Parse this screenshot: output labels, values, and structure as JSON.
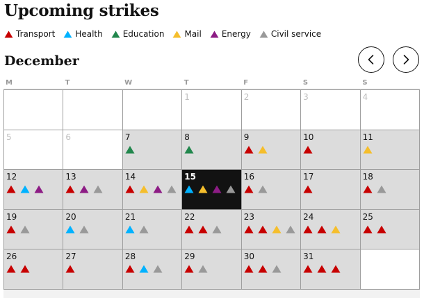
{
  "title": "Upcoming strikes",
  "colors": {
    "Transport": "#c70000",
    "Health": "#00b2ff",
    "Education": "#22874d",
    "Mail": "#f5be2c",
    "Energy": "#8d1c85",
    "Civil service": "#999999"
  },
  "legend": [
    {
      "label": "Transport",
      "key": "Transport"
    },
    {
      "label": "Health",
      "key": "Health"
    },
    {
      "label": "Education",
      "key": "Education"
    },
    {
      "label": "Mail",
      "key": "Mail"
    },
    {
      "label": "Energy",
      "key": "Energy"
    },
    {
      "label": "Civil service",
      "key": "Civil service"
    }
  ],
  "calendar": {
    "month": "December",
    "prev_icon": "chevron-left-icon",
    "next_icon": "chevron-right-icon",
    "weekdays": [
      "M",
      "T",
      "W",
      "T",
      "F",
      "S",
      "S"
    ],
    "today": 15,
    "cells": [
      {
        "day": "",
        "state": "empty",
        "strikes": []
      },
      {
        "day": "",
        "state": "empty",
        "strikes": []
      },
      {
        "day": "",
        "state": "empty",
        "strikes": []
      },
      {
        "day": "1",
        "state": "muted",
        "strikes": []
      },
      {
        "day": "2",
        "state": "muted",
        "strikes": []
      },
      {
        "day": "3",
        "state": "muted",
        "strikes": []
      },
      {
        "day": "4",
        "state": "muted",
        "strikes": []
      },
      {
        "day": "5",
        "state": "muted",
        "strikes": []
      },
      {
        "day": "6",
        "state": "muted",
        "strikes": []
      },
      {
        "day": "7",
        "state": "grey",
        "strikes": [
          "Education"
        ]
      },
      {
        "day": "8",
        "state": "grey",
        "strikes": [
          "Education"
        ]
      },
      {
        "day": "9",
        "state": "grey",
        "strikes": [
          "Transport",
          "Mail"
        ]
      },
      {
        "day": "10",
        "state": "grey",
        "strikes": [
          "Transport"
        ]
      },
      {
        "day": "11",
        "state": "grey",
        "strikes": [
          "Mail"
        ]
      },
      {
        "day": "12",
        "state": "grey",
        "strikes": [
          "Transport",
          "Health",
          "Energy"
        ]
      },
      {
        "day": "13",
        "state": "grey",
        "strikes": [
          "Transport",
          "Energy",
          "Civil service"
        ]
      },
      {
        "day": "14",
        "state": "grey",
        "strikes": [
          "Transport",
          "Mail",
          "Energy",
          "Civil service"
        ]
      },
      {
        "day": "15",
        "state": "today",
        "strikes": [
          "Health",
          "Mail",
          "Energy",
          "Civil service"
        ]
      },
      {
        "day": "16",
        "state": "grey",
        "strikes": [
          "Transport",
          "Civil service"
        ]
      },
      {
        "day": "17",
        "state": "grey",
        "strikes": [
          "Transport"
        ]
      },
      {
        "day": "18",
        "state": "grey",
        "strikes": [
          "Transport",
          "Civil service"
        ]
      },
      {
        "day": "19",
        "state": "grey",
        "strikes": [
          "Transport",
          "Civil service"
        ]
      },
      {
        "day": "20",
        "state": "grey",
        "strikes": [
          "Health",
          "Civil service"
        ]
      },
      {
        "day": "21",
        "state": "grey",
        "strikes": [
          "Health",
          "Civil service"
        ]
      },
      {
        "day": "22",
        "state": "grey",
        "strikes": [
          "Transport",
          "Transport",
          "Civil service"
        ]
      },
      {
        "day": "23",
        "state": "grey",
        "strikes": [
          "Transport",
          "Transport",
          "Mail",
          "Civil service"
        ]
      },
      {
        "day": "24",
        "state": "grey",
        "strikes": [
          "Transport",
          "Transport",
          "Mail"
        ]
      },
      {
        "day": "25",
        "state": "grey",
        "strikes": [
          "Transport",
          "Transport"
        ]
      },
      {
        "day": "26",
        "state": "grey",
        "strikes": [
          "Transport",
          "Transport"
        ]
      },
      {
        "day": "27",
        "state": "grey",
        "strikes": [
          "Transport"
        ]
      },
      {
        "day": "28",
        "state": "grey",
        "strikes": [
          "Transport",
          "Health",
          "Civil service"
        ]
      },
      {
        "day": "29",
        "state": "grey",
        "strikes": [
          "Transport",
          "Civil service"
        ]
      },
      {
        "day": "30",
        "state": "grey",
        "strikes": [
          "Transport",
          "Transport",
          "Civil service"
        ]
      },
      {
        "day": "31",
        "state": "grey",
        "strikes": [
          "Transport",
          "Transport",
          "Transport"
        ]
      },
      {
        "day": "",
        "state": "empty",
        "strikes": []
      }
    ]
  }
}
